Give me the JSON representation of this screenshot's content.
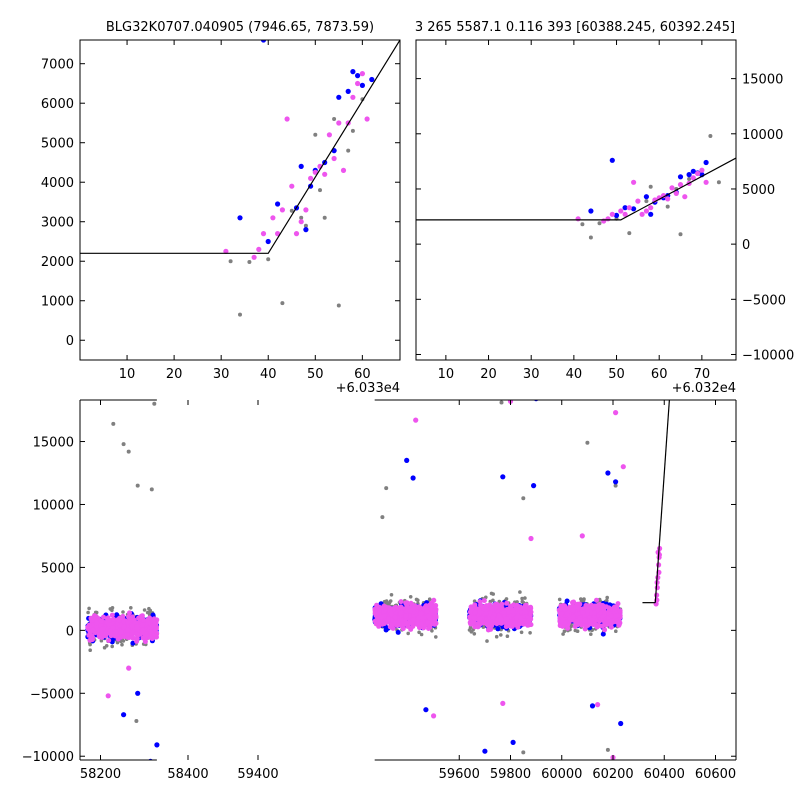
{
  "figure": {
    "title_left": "BLG32K0707.040905 (7946.65, 7873.59)",
    "title_right": "3 265 5587.1 0.116 393 [60388.245, 60392.245]"
  },
  "colors": {
    "grey": "#808080",
    "blue": "#0000ff",
    "magenta": "#ee55ee",
    "line": "#000000"
  },
  "chart_data": [
    {
      "type": "scatter",
      "name": "zoom-left",
      "x_offset_label": "+6.033e4",
      "xlim": [
        0,
        68
      ],
      "ylim": [
        -500,
        7600
      ],
      "xticks": [
        10,
        20,
        30,
        40,
        50,
        60
      ],
      "yticks": [
        0,
        1000,
        2000,
        3000,
        4000,
        5000,
        6000,
        7000
      ],
      "model_line": [
        [
          0,
          2200
        ],
        [
          40,
          2200
        ],
        [
          68,
          7600
        ]
      ],
      "series": [
        {
          "color": "grey",
          "points": [
            [
              32,
              2000
            ],
            [
              34,
              650
            ],
            [
              36,
              1980
            ],
            [
              40,
              2050
            ],
            [
              43,
              940
            ],
            [
              45,
              3280
            ],
            [
              47,
              3100
            ],
            [
              48,
              2900
            ],
            [
              50,
              5200
            ],
            [
              51,
              3800
            ],
            [
              52,
              3100
            ],
            [
              54,
              5600
            ],
            [
              55,
              880
            ],
            [
              57,
              4800
            ],
            [
              58,
              5300
            ],
            [
              60,
              6100
            ],
            [
              62,
              6600
            ]
          ]
        },
        {
          "color": "blue",
          "points": [
            [
              34,
              3100
            ],
            [
              39,
              7600
            ],
            [
              40,
              2500
            ],
            [
              42,
              3450
            ],
            [
              46,
              3350
            ],
            [
              47,
              4400
            ],
            [
              48,
              2800
            ],
            [
              49,
              3900
            ],
            [
              50,
              4300
            ],
            [
              52,
              4500
            ],
            [
              54,
              4800
            ],
            [
              55,
              6150
            ],
            [
              57,
              6300
            ],
            [
              58,
              6800
            ],
            [
              59,
              6700
            ],
            [
              60,
              6450
            ],
            [
              62,
              6600
            ]
          ]
        },
        {
          "color": "magenta",
          "points": [
            [
              31,
              2250
            ],
            [
              37,
              2100
            ],
            [
              38,
              2300
            ],
            [
              39,
              2700
            ],
            [
              41,
              3100
            ],
            [
              42,
              2700
            ],
            [
              43,
              3300
            ],
            [
              44,
              5600
            ],
            [
              45,
              3900
            ],
            [
              46,
              2700
            ],
            [
              47,
              3000
            ],
            [
              48,
              3300
            ],
            [
              49,
              4100
            ],
            [
              50,
              4250
            ],
            [
              51,
              4400
            ],
            [
              52,
              4200
            ],
            [
              53,
              5200
            ],
            [
              54,
              4600
            ],
            [
              55,
              5500
            ],
            [
              56,
              4300
            ],
            [
              57,
              5500
            ],
            [
              58,
              6150
            ],
            [
              59,
              6500
            ],
            [
              60,
              6750
            ],
            [
              61,
              5600
            ]
          ]
        }
      ]
    },
    {
      "type": "scatter",
      "name": "zoom-right",
      "x_offset_label": "+6.032e4",
      "xlim": [
        3,
        78
      ],
      "ylim": [
        -10500,
        18500
      ],
      "xticks": [
        10,
        20,
        30,
        40,
        50,
        60,
        70
      ],
      "yticks": [
        -10000,
        -5000,
        0,
        5000,
        10000,
        15000
      ],
      "model_line": [
        [
          3,
          2200
        ],
        [
          51,
          2200
        ],
        [
          78,
          7800
        ]
      ],
      "series": [
        {
          "color": "grey",
          "points": [
            [
              42,
              1800
            ],
            [
              44,
              600
            ],
            [
              46,
              1900
            ],
            [
              50,
              2300
            ],
            [
              53,
              1000
            ],
            [
              56,
              2700
            ],
            [
              57,
              3900
            ],
            [
              58,
              5200
            ],
            [
              62,
              3400
            ],
            [
              64,
              5000
            ],
            [
              65,
              900
            ],
            [
              67,
              5900
            ],
            [
              69,
              6500
            ],
            [
              72,
              9800
            ],
            [
              74,
              5600
            ]
          ]
        },
        {
          "color": "blue",
          "points": [
            [
              44,
              3000
            ],
            [
              49,
              7600
            ],
            [
              50,
              2600
            ],
            [
              52,
              3300
            ],
            [
              54,
              3200
            ],
            [
              57,
              4300
            ],
            [
              58,
              2700
            ],
            [
              59,
              3800
            ],
            [
              61,
              4200
            ],
            [
              62,
              4400
            ],
            [
              64,
              4700
            ],
            [
              65,
              6100
            ],
            [
              67,
              6300
            ],
            [
              68,
              6600
            ],
            [
              69,
              6450
            ],
            [
              70,
              6300
            ],
            [
              71,
              7400
            ]
          ]
        },
        {
          "color": "magenta",
          "points": [
            [
              41,
              2300
            ],
            [
              47,
              2100
            ],
            [
              48,
              2300
            ],
            [
              49,
              2700
            ],
            [
              51,
              3000
            ],
            [
              52,
              2700
            ],
            [
              53,
              3300
            ],
            [
              54,
              5600
            ],
            [
              55,
              3900
            ],
            [
              56,
              2700
            ],
            [
              57,
              3000
            ],
            [
              58,
              3300
            ],
            [
              59,
              4000
            ],
            [
              60,
              4200
            ],
            [
              61,
              4400
            ],
            [
              62,
              4100
            ],
            [
              63,
              5100
            ],
            [
              64,
              4600
            ],
            [
              65,
              5400
            ],
            [
              66,
              4300
            ],
            [
              67,
              5500
            ],
            [
              68,
              6000
            ],
            [
              69,
              6400
            ],
            [
              70,
              6700
            ],
            [
              71,
              5600
            ]
          ]
        }
      ]
    },
    {
      "type": "scatter",
      "name": "full-light-curve",
      "xlim": [
        58120,
        60680
      ],
      "ylim": [
        -10300,
        18300
      ],
      "xticks": [
        58200,
        58400,
        59400,
        59600,
        59800,
        60000,
        60200,
        60400,
        60600
      ],
      "yticks": [
        -10000,
        -5000,
        0,
        5000,
        10000,
        15000
      ],
      "season_gap": [
        58420,
        59270
      ],
      "seasons": [
        [
          58150,
          58420
        ],
        [
          59270,
          59510
        ],
        [
          59640,
          59880
        ],
        [
          59990,
          60230
        ]
      ],
      "baseline_segment": [
        [
          60315,
          2200
        ],
        [
          60365,
          2200
        ]
      ],
      "rise_line": [
        [
          60365,
          2200
        ],
        [
          60420,
          18300
        ]
      ],
      "rise_points": [
        [
          60370,
          2800
        ],
        [
          60372,
          3800
        ],
        [
          60375,
          4200
        ],
        [
          60378,
          5200
        ],
        [
          60380,
          5800
        ],
        [
          60382,
          6500
        ],
        [
          60376,
          6200
        ],
        [
          60371,
          2400
        ],
        [
          60368,
          2100
        ],
        [
          60373,
          3400
        ],
        [
          60379,
          4600
        ],
        [
          60381,
          6000
        ]
      ],
      "outliers": [
        {
          "color": "grey",
          "points": [
            [
              58250,
              16400
            ],
            [
              58290,
              14800
            ],
            [
              58310,
              14200
            ],
            [
              58345,
              11500
            ],
            [
              58400,
              11200
            ],
            [
              58410,
              18000
            ],
            [
              59300,
              9000
            ],
            [
              59315,
              11300
            ],
            [
              59850,
              10500
            ],
            [
              59765,
              18100
            ],
            [
              60100,
              14900
            ],
            [
              60210,
              11500
            ],
            [
              60180,
              -9500
            ],
            [
              59850,
              -9700
            ],
            [
              58340,
              -7200
            ]
          ]
        },
        {
          "color": "blue",
          "points": [
            [
              58290,
              -6700
            ],
            [
              58345,
              -5000
            ],
            [
              58395,
              -10400
            ],
            [
              58420,
              -9100
            ],
            [
              59395,
              13500
            ],
            [
              59420,
              12100
            ],
            [
              59470,
              -6300
            ],
            [
              59700,
              -9600
            ],
            [
              59810,
              -8900
            ],
            [
              59900,
              18400
            ],
            [
              59770,
              12200
            ],
            [
              59890,
              11500
            ],
            [
              60120,
              -6000
            ],
            [
              60180,
              12500
            ],
            [
              60210,
              11800
            ],
            [
              60230,
              -7400
            ]
          ]
        },
        {
          "color": "magenta",
          "points": [
            [
              58230,
              -5200
            ],
            [
              58310,
              -3000
            ],
            [
              59430,
              16700
            ],
            [
              59500,
              -6800
            ],
            [
              59800,
              18200
            ],
            [
              59770,
              -5800
            ],
            [
              60140,
              -5900
            ],
            [
              60200,
              -10100
            ],
            [
              60210,
              17300
            ],
            [
              60240,
              13000
            ],
            [
              59880,
              7300
            ],
            [
              60080,
              7500
            ]
          ]
        }
      ]
    }
  ]
}
